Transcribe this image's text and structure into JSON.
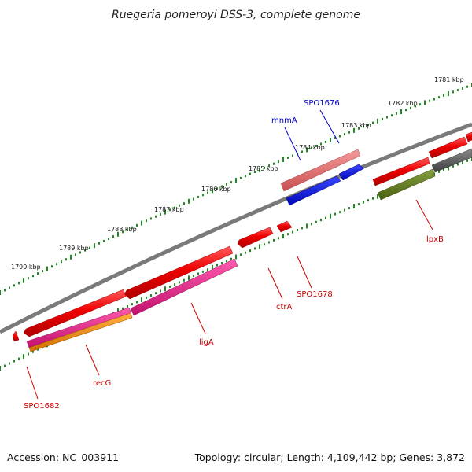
{
  "title": "Ruegeria pomeroyi DSS-3, complete genome",
  "footer": {
    "accession": "Accession: NC_003911",
    "summary": "Topology: circular; Length: 4,109,442 bp; Genes: 3,872"
  },
  "colors": {
    "backbone": "#7a7a7a",
    "ticks": "#1f8a1f",
    "cds_red": "#ee0000",
    "cds_pink": "#e8208c",
    "cds_orange": "#f09010",
    "cds_salmon": "#e26c6c",
    "cds_blue": "#0a14e6",
    "cds_olive": "#5e7a1e",
    "cds_gray": "#5a5a5a",
    "label_red": "#cc0000",
    "label_blue": "#0000cc"
  },
  "ticks": [
    {
      "label": "1781 kbp"
    },
    {
      "label": "1782 kbp"
    },
    {
      "label": "1783 kbp"
    },
    {
      "label": "1784 kbp"
    },
    {
      "label": "1785 kbp"
    },
    {
      "label": "1786 kbp"
    },
    {
      "label": "1787 kbp"
    },
    {
      "label": "1788 kbp"
    },
    {
      "label": "1789 kbp"
    },
    {
      "label": "1790 kbp"
    }
  ],
  "gene_labels": [
    {
      "text": "SPO1676",
      "color": "blue"
    },
    {
      "text": "mnmA",
      "color": "blue"
    },
    {
      "text": "lpxB",
      "color": "red"
    },
    {
      "text": "SPO1678",
      "color": "red"
    },
    {
      "text": "ctrA",
      "color": "red"
    },
    {
      "text": "ligA",
      "color": "red"
    },
    {
      "text": "recG",
      "color": "red"
    },
    {
      "text": "SPO1682",
      "color": "red"
    }
  ]
}
